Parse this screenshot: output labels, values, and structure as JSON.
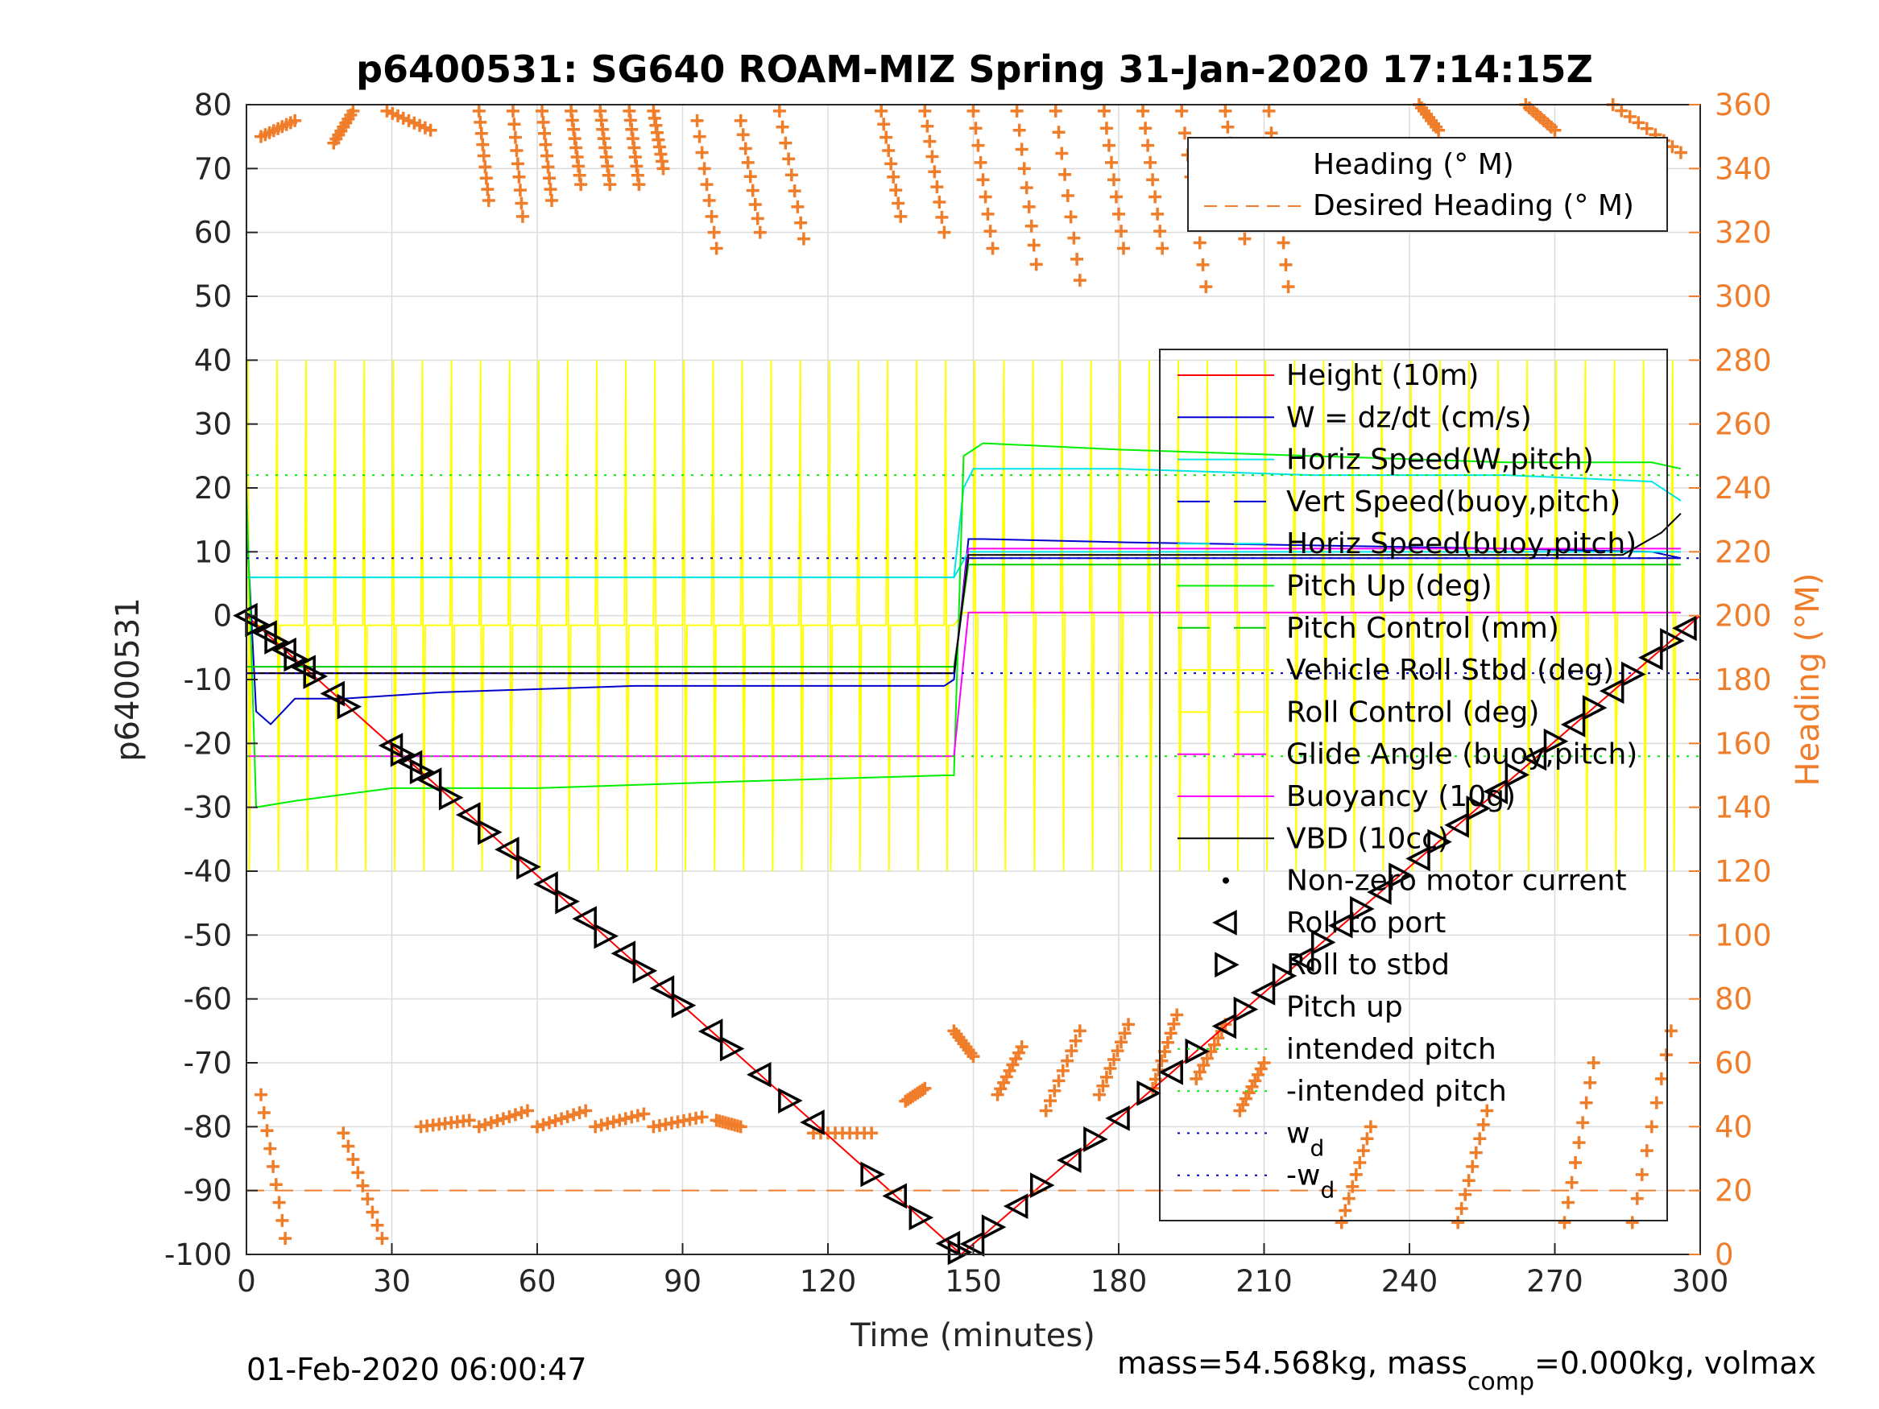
{
  "title": "p6400531: SG640 ROAM-MIZ Spring 31-Jan-2020 17:14:15Z",
  "footer_left": "01-Feb-2020 06:00:47",
  "footer_right_prefix": "mass=54.568kg, mass",
  "footer_right_sub": "comp",
  "footer_right_suffix": "=0.000kg, volmax",
  "colors": {
    "orange": "#f07d2a",
    "grid": "#dcdcdc",
    "yellow": "#ffff00",
    "green": "#00ee00",
    "cyan": "#00e5e5",
    "blue": "#0000cc",
    "red": "#ff0000",
    "magenta": "#ff00ff"
  },
  "chart_data": {
    "type": "line",
    "title": "p6400531: SG640 ROAM-MIZ Spring 31-Jan-2020 17:14:15Z",
    "xlabel": "Time (minutes)",
    "ylabel": "p6400531",
    "y2label": "Heading (°M)",
    "xlim": [
      0,
      300
    ],
    "ylim": [
      -100,
      80
    ],
    "y2lim": [
      0,
      360
    ],
    "grid": true,
    "x_ticks": [
      0,
      30,
      60,
      90,
      120,
      150,
      180,
      210,
      240,
      270,
      300
    ],
    "y_ticks": [
      -100,
      -90,
      -80,
      -70,
      -60,
      -50,
      -40,
      -30,
      -20,
      -10,
      0,
      10,
      20,
      30,
      40,
      50,
      60,
      70,
      80
    ],
    "y2_ticks": [
      0,
      20,
      40,
      60,
      80,
      100,
      120,
      140,
      160,
      180,
      200,
      220,
      240,
      260,
      280,
      300,
      320,
      340,
      360
    ],
    "legend_heading": {
      "position": "top-right",
      "entries": [
        "Heading (° M)",
        "Desired Heading (° M)"
      ]
    },
    "legend_main": {
      "position": "right",
      "entries": [
        "Height (10m)",
        "W = dz/dt (cm/s)",
        "Horiz Speed(W,pitch)",
        "Vert Speed(buoy,pitch)",
        "Horiz Speed(buoy,pitch)",
        "Pitch Up (deg)",
        "Pitch Control (mm)",
        "Vehicle Roll Stbd (deg)",
        "Roll Control (deg)",
        "Glide Angle (buoy,pitch)",
        "Buoyancy (10g)",
        "VBD (10cc)",
        "Non-zero motor current",
        "Roll to port",
        "Roll to stbd",
        "Pitch up",
        "intended pitch",
        "-intended pitch",
        "w",
        "-w"
      ],
      "subscript_entries": {
        "w": "d",
        "-w": "d"
      }
    },
    "series": [
      {
        "name": "Height (10m)",
        "color": "#ff0000",
        "x": [
          0,
          147.5,
          300
        ],
        "y": [
          0,
          -100,
          0
        ]
      },
      {
        "name": "W = dz/dt (cm/s)",
        "color": "#0000cc",
        "x": [
          0,
          2,
          5,
          10,
          20,
          40,
          80,
          120,
          144,
          146,
          149,
          152,
          180,
          220,
          260,
          290,
          296
        ],
        "y": [
          15,
          -15,
          -17,
          -13,
          -13,
          -12,
          -11,
          -11,
          -11,
          -10,
          12,
          12,
          11.5,
          11,
          10.5,
          10,
          9
        ]
      },
      {
        "name": "Horiz Speed(W,pitch)",
        "color": "#00e5e5",
        "x": [
          0,
          146,
          148,
          150,
          180,
          220,
          260,
          290,
          296
        ],
        "y": [
          6,
          6,
          20,
          23,
          23,
          22,
          22,
          21,
          18
        ]
      },
      {
        "name": "Vert Speed(buoy,pitch)",
        "color": "#0000cc",
        "x": [
          0,
          146,
          149,
          296
        ],
        "y": [
          -9,
          -9,
          9,
          9
        ]
      },
      {
        "name": "Horiz Speed(buoy,pitch)",
        "color": "#00e5e5",
        "x": [
          0,
          146,
          149,
          296
        ],
        "y": [
          6,
          6,
          10,
          10
        ]
      },
      {
        "name": "Pitch Up (deg)",
        "color": "#00ee00",
        "x": [
          0,
          2,
          10,
          30,
          60,
          100,
          144,
          146,
          148,
          152,
          180,
          220,
          260,
          290,
          296
        ],
        "y": [
          20,
          -30,
          -29,
          -27,
          -27,
          -26,
          -25,
          -25,
          25,
          27,
          26,
          25,
          24,
          24,
          23
        ]
      },
      {
        "name": "Pitch Control (mm)",
        "color": "#00cc00",
        "x": [
          0,
          146,
          149,
          296
        ],
        "y": [
          -8,
          -8,
          8,
          8
        ]
      },
      {
        "name": "Glide Angle (buoy,pitch)",
        "color": "#ff00ff",
        "x": [
          0,
          146,
          149,
          296
        ],
        "y": [
          -22,
          -22,
          0.5,
          0.5
        ]
      },
      {
        "name": "Buoyancy (10g)",
        "color": "#ff00ff",
        "x": [
          0,
          146,
          149,
          296
        ],
        "y": [
          -9,
          -9,
          10.5,
          10.5
        ]
      },
      {
        "name": "VBD (10cc)",
        "color": "#000000",
        "x": [
          0,
          146,
          149,
          284,
          292,
          296
        ],
        "y": [
          -9,
          -9,
          9.5,
          9.5,
          13,
          16
        ]
      },
      {
        "name": "intended pitch",
        "color": "#00ee00",
        "style": "dotted",
        "x": [
          0,
          300
        ],
        "y": [
          22,
          22
        ]
      },
      {
        "name": "-intended pitch",
        "color": "#00ee00",
        "style": "dotted",
        "x": [
          0,
          300
        ],
        "y": [
          -22,
          -22
        ]
      },
      {
        "name": "w",
        "color": "#0000cc",
        "style": "dotted",
        "x": [
          0,
          300
        ],
        "y": [
          9,
          9
        ]
      },
      {
        "name": "-w",
        "color": "#0000cc",
        "style": "dotted",
        "x": [
          0,
          300
        ],
        "y": [
          -9,
          -9
        ]
      },
      {
        "name": "Desired Heading (° M)",
        "color": "#f07d2a",
        "axis": "right",
        "style": "dashed",
        "x": [
          0,
          300
        ],
        "y": [
          20,
          20
        ]
      }
    ],
    "roll_markers_x": [
      0,
      2,
      4,
      6,
      8,
      10,
      12,
      14,
      18,
      21,
      30,
      32,
      34,
      36,
      38,
      42,
      46,
      50,
      54,
      58,
      62,
      66,
      70,
      74,
      78,
      82,
      86,
      90,
      96,
      100,
      106,
      112,
      117,
      129,
      134,
      139,
      145,
      147,
      150,
      154,
      159,
      164,
      170,
      175,
      180,
      186,
      191,
      196,
      202,
      206,
      210,
      214,
      218,
      222,
      226,
      230,
      234,
      238,
      242,
      246,
      250,
      254,
      258,
      262,
      266,
      270,
      274,
      278,
      282,
      286,
      290,
      294,
      297
    ],
    "heading_tracks": [
      {
        "x0": 3,
        "x1": 10,
        "deg0": 350,
        "deg1": 355
      },
      {
        "x0": 18,
        "x1": 22,
        "deg0": 348,
        "deg1": 358
      },
      {
        "x0": 29,
        "x1": 38,
        "deg0": 358,
        "deg1": 352
      },
      {
        "x0": 48,
        "x1": 50,
        "deg0": 358,
        "deg1": 330
      },
      {
        "x0": 55,
        "x1": 57,
        "deg0": 358,
        "deg1": 325
      },
      {
        "x0": 61,
        "x1": 63,
        "deg0": 358,
        "deg1": 330
      },
      {
        "x0": 67,
        "x1": 69,
        "deg0": 358,
        "deg1": 335
      },
      {
        "x0": 73,
        "x1": 75,
        "deg0": 358,
        "deg1": 335
      },
      {
        "x0": 79,
        "x1": 81,
        "deg0": 358,
        "deg1": 335
      },
      {
        "x0": 84,
        "x1": 86,
        "deg0": 358,
        "deg1": 340
      },
      {
        "x0": 93,
        "x1": 97,
        "deg0": 355,
        "deg1": 315
      },
      {
        "x0": 102,
        "x1": 106,
        "deg0": 355,
        "deg1": 320
      },
      {
        "x0": 110,
        "x1": 115,
        "deg0": 358,
        "deg1": 318
      },
      {
        "x0": 131,
        "x1": 135,
        "deg0": 358,
        "deg1": 325
      },
      {
        "x0": 140,
        "x1": 144,
        "deg0": 358,
        "deg1": 320
      },
      {
        "x0": 150,
        "x1": 154,
        "deg0": 358,
        "deg1": 315
      },
      {
        "x0": 159,
        "x1": 163,
        "deg0": 358,
        "deg1": 310
      },
      {
        "x0": 167,
        "x1": 172,
        "deg0": 358,
        "deg1": 305
      },
      {
        "x0": 177,
        "x1": 181,
        "deg0": 358,
        "deg1": 315
      },
      {
        "x0": 185,
        "x1": 189,
        "deg0": 358,
        "deg1": 315
      },
      {
        "x0": 193,
        "x1": 198,
        "deg0": 358,
        "deg1": 303
      },
      {
        "x0": 202,
        "x1": 206,
        "deg0": 358,
        "deg1": 318
      },
      {
        "x0": 211,
        "x1": 215,
        "deg0": 358,
        "deg1": 303
      },
      {
        "x0": 242,
        "x1": 246,
        "deg0": 360,
        "deg1": 352
      },
      {
        "x0": 264,
        "x1": 270,
        "deg0": 360,
        "deg1": 352
      },
      {
        "x0": 282,
        "x1": 296,
        "deg0": 360,
        "deg1": 345
      },
      {
        "x0": 3,
        "x1": 8,
        "deg0": 50,
        "deg1": 5
      },
      {
        "x0": 20,
        "x1": 28,
        "deg0": 38,
        "deg1": 5
      },
      {
        "x0": 36,
        "x1": 46,
        "deg0": 40,
        "deg1": 42
      },
      {
        "x0": 48,
        "x1": 58,
        "deg0": 40,
        "deg1": 45
      },
      {
        "x0": 60,
        "x1": 70,
        "deg0": 40,
        "deg1": 45
      },
      {
        "x0": 72,
        "x1": 82,
        "deg0": 40,
        "deg1": 44
      },
      {
        "x0": 84,
        "x1": 94,
        "deg0": 40,
        "deg1": 43
      },
      {
        "x0": 97,
        "x1": 102,
        "deg0": 42,
        "deg1": 40
      },
      {
        "x0": 117,
        "x1": 129,
        "deg0": 38,
        "deg1": 38
      },
      {
        "x0": 136,
        "x1": 140,
        "deg0": 48,
        "deg1": 52
      },
      {
        "x0": 146,
        "x1": 150,
        "deg0": 70,
        "deg1": 62
      },
      {
        "x0": 155,
        "x1": 160,
        "deg0": 50,
        "deg1": 65
      },
      {
        "x0": 165,
        "x1": 172,
        "deg0": 45,
        "deg1": 70
      },
      {
        "x0": 176,
        "x1": 182,
        "deg0": 50,
        "deg1": 72
      },
      {
        "x0": 187,
        "x1": 192,
        "deg0": 52,
        "deg1": 75
      },
      {
        "x0": 196,
        "x1": 202,
        "deg0": 55,
        "deg1": 72
      },
      {
        "x0": 205,
        "x1": 210,
        "deg0": 45,
        "deg1": 60
      },
      {
        "x0": 226,
        "x1": 232,
        "deg0": 10,
        "deg1": 40
      },
      {
        "x0": 250,
        "x1": 256,
        "deg0": 10,
        "deg1": 45
      },
      {
        "x0": 272,
        "x1": 278,
        "deg0": 10,
        "deg1": 60
      },
      {
        "x0": 286,
        "x1": 294,
        "deg0": 10,
        "deg1": 70
      }
    ]
  }
}
